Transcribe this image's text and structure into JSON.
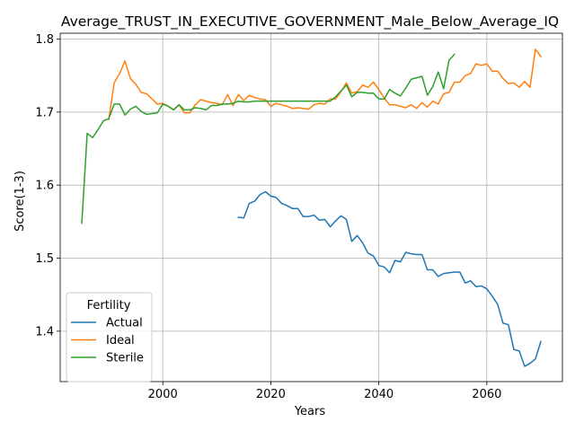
{
  "chart_data": {
    "type": "line",
    "title": "Average_TRUST_IN_EXECUTIVE_GOVERNMENT_Male_Below_Average_IQ",
    "xlabel": "Years",
    "ylabel": "Score(1-3)",
    "xlim": [
      1981,
      2074
    ],
    "ylim": [
      1.331,
      1.808
    ],
    "xticks": [
      2000,
      2020,
      2040,
      2060
    ],
    "xtick_labels": [
      "2000",
      "2020",
      "2040",
      "2060"
    ],
    "yticks": [
      1.4,
      1.5,
      1.6,
      1.7,
      1.8
    ],
    "ytick_labels": [
      "1.4",
      "1.5",
      "1.6",
      "1.7",
      "1.8"
    ],
    "grid": true,
    "legend": {
      "title": "Fertility",
      "position": "lower-left"
    },
    "series": [
      {
        "name": "Actual",
        "color": "#1f77b4",
        "points": [
          [
            2014,
            1.556
          ],
          [
            2015,
            1.555
          ],
          [
            2016,
            1.575
          ],
          [
            2017,
            1.578
          ],
          [
            2018,
            1.587
          ],
          [
            2019,
            1.591
          ],
          [
            2020,
            1.585
          ],
          [
            2021,
            1.583
          ],
          [
            2022,
            1.575
          ],
          [
            2023,
            1.572
          ],
          [
            2024,
            1.568
          ],
          [
            2025,
            1.568
          ],
          [
            2026,
            1.557
          ],
          [
            2027,
            1.557
          ],
          [
            2028,
            1.559
          ],
          [
            2029,
            1.552
          ],
          [
            2030,
            1.553
          ],
          [
            2031,
            1.543
          ],
          [
            2032,
            1.551
          ],
          [
            2033,
            1.558
          ],
          [
            2034,
            1.553
          ],
          [
            2035,
            1.523
          ],
          [
            2036,
            1.531
          ],
          [
            2037,
            1.521
          ],
          [
            2038,
            1.507
          ],
          [
            2039,
            1.503
          ],
          [
            2040,
            1.49
          ],
          [
            2041,
            1.488
          ],
          [
            2042,
            1.48
          ],
          [
            2043,
            1.497
          ],
          [
            2044,
            1.495
          ],
          [
            2045,
            1.508
          ],
          [
            2046,
            1.506
          ],
          [
            2047,
            1.505
          ],
          [
            2048,
            1.505
          ],
          [
            2049,
            1.484
          ],
          [
            2050,
            1.484
          ],
          [
            2051,
            1.475
          ],
          [
            2052,
            1.479
          ],
          [
            2053,
            1.48
          ],
          [
            2054,
            1.481
          ],
          [
            2055,
            1.481
          ],
          [
            2056,
            1.466
          ],
          [
            2057,
            1.469
          ],
          [
            2058,
            1.461
          ],
          [
            2059,
            1.462
          ],
          [
            2060,
            1.458
          ],
          [
            2061,
            1.448
          ],
          [
            2062,
            1.437
          ],
          [
            2063,
            1.411
          ],
          [
            2064,
            1.409
          ],
          [
            2065,
            1.375
          ],
          [
            2066,
            1.373
          ],
          [
            2067,
            1.352
          ],
          [
            2068,
            1.356
          ],
          [
            2069,
            1.362
          ],
          [
            2070,
            1.386
          ]
        ]
      },
      {
        "name": "Ideal",
        "color": "#ff7f0e",
        "points": [
          [
            1990,
            1.69
          ],
          [
            1991,
            1.74
          ],
          [
            1992,
            1.753
          ],
          [
            1993,
            1.77
          ],
          [
            1994,
            1.746
          ],
          [
            1995,
            1.738
          ],
          [
            1996,
            1.727
          ],
          [
            1997,
            1.725
          ],
          [
            1998,
            1.718
          ],
          [
            1999,
            1.711
          ],
          [
            2000,
            1.712
          ],
          [
            2001,
            1.708
          ],
          [
            2002,
            1.703
          ],
          [
            2003,
            1.71
          ],
          [
            2004,
            1.699
          ],
          [
            2005,
            1.699
          ],
          [
            2006,
            1.71
          ],
          [
            2007,
            1.717
          ],
          [
            2008,
            1.715
          ],
          [
            2009,
            1.713
          ],
          [
            2010,
            1.712
          ],
          [
            2011,
            1.71
          ],
          [
            2012,
            1.724
          ],
          [
            2013,
            1.709
          ],
          [
            2014,
            1.724
          ],
          [
            2015,
            1.716
          ],
          [
            2016,
            1.723
          ],
          [
            2017,
            1.72
          ],
          [
            2018,
            1.718
          ],
          [
            2019,
            1.717
          ],
          [
            2020,
            1.708
          ],
          [
            2021,
            1.712
          ],
          [
            2022,
            1.71
          ],
          [
            2023,
            1.708
          ],
          [
            2024,
            1.705
          ],
          [
            2025,
            1.706
          ],
          [
            2026,
            1.705
          ],
          [
            2027,
            1.704
          ],
          [
            2028,
            1.71
          ],
          [
            2029,
            1.712
          ],
          [
            2030,
            1.711
          ],
          [
            2031,
            1.718
          ],
          [
            2032,
            1.718
          ],
          [
            2033,
            1.728
          ],
          [
            2034,
            1.74
          ],
          [
            2035,
            1.726
          ],
          [
            2036,
            1.728
          ],
          [
            2037,
            1.737
          ],
          [
            2038,
            1.734
          ],
          [
            2039,
            1.741
          ],
          [
            2040,
            1.731
          ],
          [
            2041,
            1.719
          ],
          [
            2042,
            1.71
          ],
          [
            2043,
            1.71
          ],
          [
            2044,
            1.708
          ],
          [
            2045,
            1.706
          ],
          [
            2046,
            1.71
          ],
          [
            2047,
            1.705
          ],
          [
            2048,
            1.713
          ],
          [
            2049,
            1.707
          ],
          [
            2050,
            1.715
          ],
          [
            2051,
            1.711
          ],
          [
            2052,
            1.725
          ],
          [
            2053,
            1.727
          ],
          [
            2054,
            1.741
          ],
          [
            2055,
            1.741
          ],
          [
            2056,
            1.75
          ],
          [
            2057,
            1.753
          ],
          [
            2058,
            1.766
          ],
          [
            2059,
            1.764
          ],
          [
            2060,
            1.766
          ],
          [
            2061,
            1.756
          ],
          [
            2062,
            1.756
          ],
          [
            2063,
            1.746
          ],
          [
            2064,
            1.739
          ],
          [
            2065,
            1.74
          ],
          [
            2066,
            1.734
          ],
          [
            2067,
            1.742
          ],
          [
            2068,
            1.734
          ],
          [
            2069,
            1.786
          ],
          [
            2070,
            1.776
          ]
        ]
      },
      {
        "name": "Sterile",
        "color": "#2ca02c",
        "points": [
          [
            1985,
            1.548
          ],
          [
            1986,
            1.671
          ],
          [
            1987,
            1.665
          ],
          [
            1988,
            1.676
          ],
          [
            1989,
            1.688
          ],
          [
            1990,
            1.691
          ],
          [
            1991,
            1.711
          ],
          [
            1992,
            1.711
          ],
          [
            1993,
            1.696
          ],
          [
            1994,
            1.704
          ],
          [
            1995,
            1.708
          ],
          [
            1996,
            1.701
          ],
          [
            1997,
            1.697
          ],
          [
            1998,
            1.698
          ],
          [
            1999,
            1.699
          ],
          [
            2000,
            1.711
          ],
          [
            2001,
            1.708
          ],
          [
            2002,
            1.703
          ],
          [
            2003,
            1.71
          ],
          [
            2004,
            1.703
          ],
          [
            2005,
            1.703
          ],
          [
            2006,
            1.706
          ],
          [
            2007,
            1.705
          ],
          [
            2008,
            1.703
          ],
          [
            2009,
            1.709
          ],
          [
            2010,
            1.709
          ],
          [
            2011,
            1.711
          ],
          [
            2012,
            1.711
          ],
          [
            2013,
            1.712
          ],
          [
            2014,
            1.715
          ],
          [
            2015,
            1.714
          ],
          [
            2016,
            1.714
          ],
          [
            2017,
            1.715
          ],
          [
            2018,
            1.715
          ],
          [
            2019,
            1.715
          ],
          [
            2020,
            1.715
          ],
          [
            2021,
            1.715
          ],
          [
            2022,
            1.715
          ],
          [
            2023,
            1.715
          ],
          [
            2024,
            1.715
          ],
          [
            2025,
            1.715
          ],
          [
            2026,
            1.715
          ],
          [
            2027,
            1.715
          ],
          [
            2028,
            1.715
          ],
          [
            2029,
            1.715
          ],
          [
            2030,
            1.715
          ],
          [
            2031,
            1.715
          ],
          [
            2032,
            1.721
          ],
          [
            2033,
            1.729
          ],
          [
            2034,
            1.737
          ],
          [
            2035,
            1.721
          ],
          [
            2036,
            1.727
          ],
          [
            2037,
            1.727
          ],
          [
            2038,
            1.726
          ],
          [
            2039,
            1.726
          ],
          [
            2040,
            1.718
          ],
          [
            2041,
            1.718
          ],
          [
            2042,
            1.731
          ],
          [
            2043,
            1.726
          ],
          [
            2044,
            1.722
          ],
          [
            2045,
            1.733
          ],
          [
            2046,
            1.745
          ],
          [
            2047,
            1.747
          ],
          [
            2048,
            1.749
          ],
          [
            2049,
            1.723
          ],
          [
            2050,
            1.735
          ],
          [
            2051,
            1.755
          ],
          [
            2052,
            1.732
          ],
          [
            2053,
            1.771
          ],
          [
            2054,
            1.779
          ]
        ]
      }
    ]
  }
}
